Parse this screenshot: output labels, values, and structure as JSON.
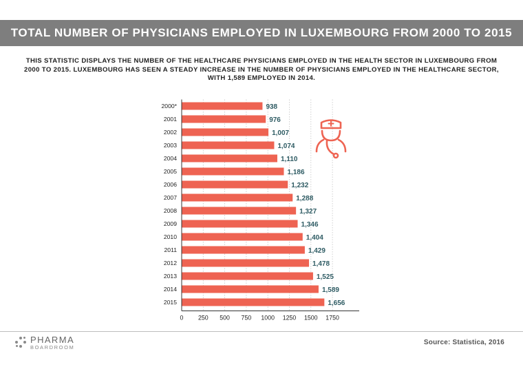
{
  "header": {
    "title": "TOTAL NUMBER OF PHYSICIANS EMPLOYED IN LUXEMBOURG FROM 2000 TO 2015"
  },
  "subtitle": "THIS STATISTIC DISPLAYS THE NUMBER OF THE HEALTHCARE PHYSICIANS EMPLOYED IN THE HEALTH SECTOR IN LUXEMBOURG FROM 2000 TO 2015. LUXEMBOURG HAS SEEN A STEADY INCREASE IN THE NUMBER OF PHYSICIANS EMPLOYED IN THE HEALTHCARE SECTOR, WITH 1,589 EMPLOYED IN 2014.",
  "colors": {
    "bar": "#ee6352",
    "value_label": "#2e5b63",
    "title_bg": "#7e7e7e",
    "icon": "#ee6352"
  },
  "chart_data": {
    "type": "bar",
    "orientation": "horizontal",
    "title": "TOTAL NUMBER OF PHYSICIANS EMPLOYED IN LUXEMBOURG FROM 2000 TO 2015",
    "categories": [
      "2000*",
      "2001",
      "2002",
      "2003",
      "2004",
      "2005",
      "2006",
      "2007",
      "2008",
      "2009",
      "2010",
      "2011",
      "2012",
      "2013",
      "2014",
      "2015"
    ],
    "values": [
      938,
      976,
      1007,
      1074,
      1110,
      1186,
      1232,
      1288,
      1327,
      1346,
      1404,
      1429,
      1478,
      1525,
      1589,
      1656
    ],
    "value_labels": [
      "938",
      "976",
      "1,007",
      "1,074",
      "1,110",
      "1,186",
      "1,232",
      "1,288",
      "1,327",
      "1,346",
      "1,404",
      "1,429",
      "1,478",
      "1,525",
      "1,589",
      "1,656"
    ],
    "xlim": [
      0,
      2000
    ],
    "xticks": [
      0,
      250,
      500,
      750,
      1000,
      1250,
      1500,
      1750
    ],
    "xtick_labels": [
      "0",
      "250",
      "500",
      "750",
      "1000",
      "1250",
      "1500",
      "1750"
    ],
    "xlabel": "",
    "ylabel": "",
    "grid": true
  },
  "icon": {
    "name": "doctor-icon"
  },
  "footer": {
    "logo_main": "PHARMA",
    "logo_sub": "BOARDROOM",
    "source": "Source: Statistica, 2016"
  }
}
